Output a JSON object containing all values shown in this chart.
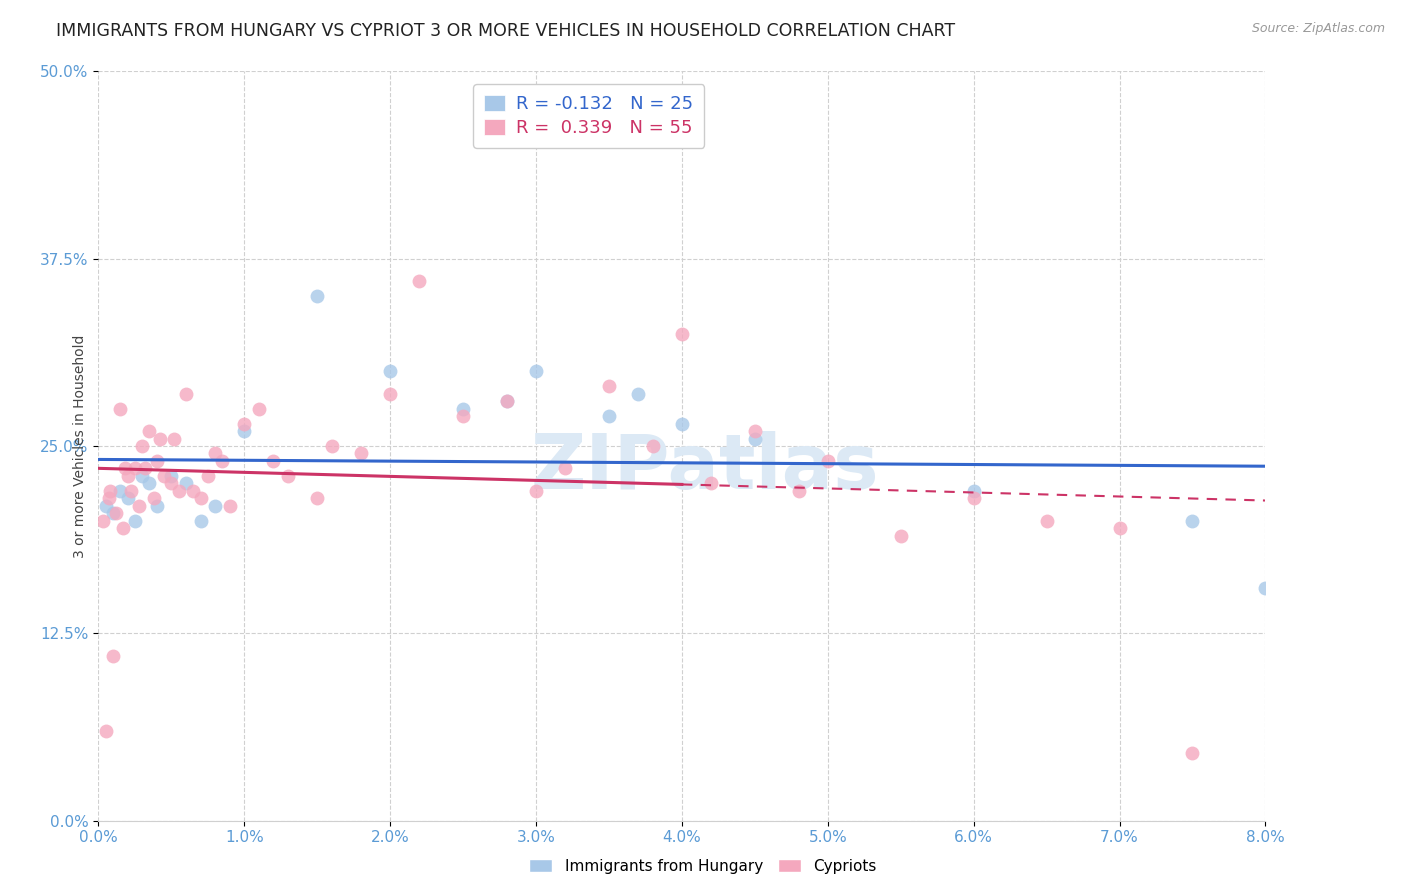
{
  "title": "IMMIGRANTS FROM HUNGARY VS CYPRIOT 3 OR MORE VEHICLES IN HOUSEHOLD CORRELATION CHART",
  "source": "Source: ZipAtlas.com",
  "xlabel_vals": [
    0.0,
    1.0,
    2.0,
    3.0,
    4.0,
    5.0,
    6.0,
    7.0,
    8.0
  ],
  "ylabel_vals": [
    0.0,
    12.5,
    25.0,
    37.5,
    50.0
  ],
  "xlim": [
    0.0,
    8.0
  ],
  "ylim": [
    0.0,
    50.0
  ],
  "ylabel": "3 or more Vehicles in Household",
  "legend_hungary": "Immigrants from Hungary",
  "legend_cypriot": "Cypriots",
  "r_hungary": -0.132,
  "n_hungary": 25,
  "r_cypriot": 0.339,
  "n_cypriot": 55,
  "color_hungary": "#a8c8e8",
  "color_cypriot": "#f4a8be",
  "color_hungary_line": "#3366cc",
  "color_cypriot_line": "#cc3366",
  "hungary_x": [
    0.05,
    0.1,
    0.15,
    0.2,
    0.25,
    0.3,
    0.35,
    0.4,
    0.5,
    0.6,
    0.7,
    0.8,
    1.0,
    1.5,
    2.0,
    2.5,
    2.8,
    3.0,
    3.5,
    3.7,
    4.0,
    4.5,
    6.0,
    7.5,
    8.0
  ],
  "hungary_y": [
    21.0,
    20.5,
    22.0,
    21.5,
    20.0,
    23.0,
    22.5,
    21.0,
    23.0,
    22.5,
    20.0,
    21.0,
    26.0,
    35.0,
    30.0,
    27.5,
    28.0,
    30.0,
    27.0,
    28.5,
    26.5,
    25.5,
    22.0,
    20.0,
    15.5
  ],
  "cypriot_x": [
    0.03,
    0.05,
    0.07,
    0.08,
    0.1,
    0.12,
    0.15,
    0.17,
    0.18,
    0.2,
    0.22,
    0.25,
    0.28,
    0.3,
    0.32,
    0.35,
    0.38,
    0.4,
    0.42,
    0.45,
    0.5,
    0.52,
    0.55,
    0.6,
    0.65,
    0.7,
    0.75,
    0.8,
    0.85,
    0.9,
    1.0,
    1.1,
    1.2,
    1.3,
    1.5,
    1.6,
    1.8,
    2.0,
    2.2,
    2.5,
    2.8,
    3.0,
    3.2,
    3.5,
    3.8,
    4.0,
    4.2,
    4.5,
    4.8,
    5.0,
    5.5,
    6.0,
    6.5,
    7.0,
    7.5
  ],
  "cypriot_y": [
    20.0,
    6.0,
    21.5,
    22.0,
    11.0,
    20.5,
    27.5,
    19.5,
    23.5,
    23.0,
    22.0,
    23.5,
    21.0,
    25.0,
    23.5,
    26.0,
    21.5,
    24.0,
    25.5,
    23.0,
    22.5,
    25.5,
    22.0,
    28.5,
    22.0,
    21.5,
    23.0,
    24.5,
    24.0,
    21.0,
    26.5,
    27.5,
    24.0,
    23.0,
    21.5,
    25.0,
    24.5,
    28.5,
    36.0,
    27.0,
    28.0,
    22.0,
    23.5,
    29.0,
    25.0,
    32.5,
    22.5,
    26.0,
    22.0,
    24.0,
    19.0,
    21.5,
    20.0,
    19.5,
    4.5
  ],
  "background_color": "#ffffff",
  "grid_color": "#d0d0d0",
  "tick_label_color": "#5b9bd5",
  "watermark_text": "ZIPatlas",
  "watermark_color": "#dce9f5",
  "watermark_fontsize": 55,
  "title_fontsize": 12.5,
  "axis_label_fontsize": 10,
  "tick_fontsize": 11,
  "legend_fontsize": 13,
  "marker_size": 100,
  "cypriot_line_solid_end": 4.0
}
